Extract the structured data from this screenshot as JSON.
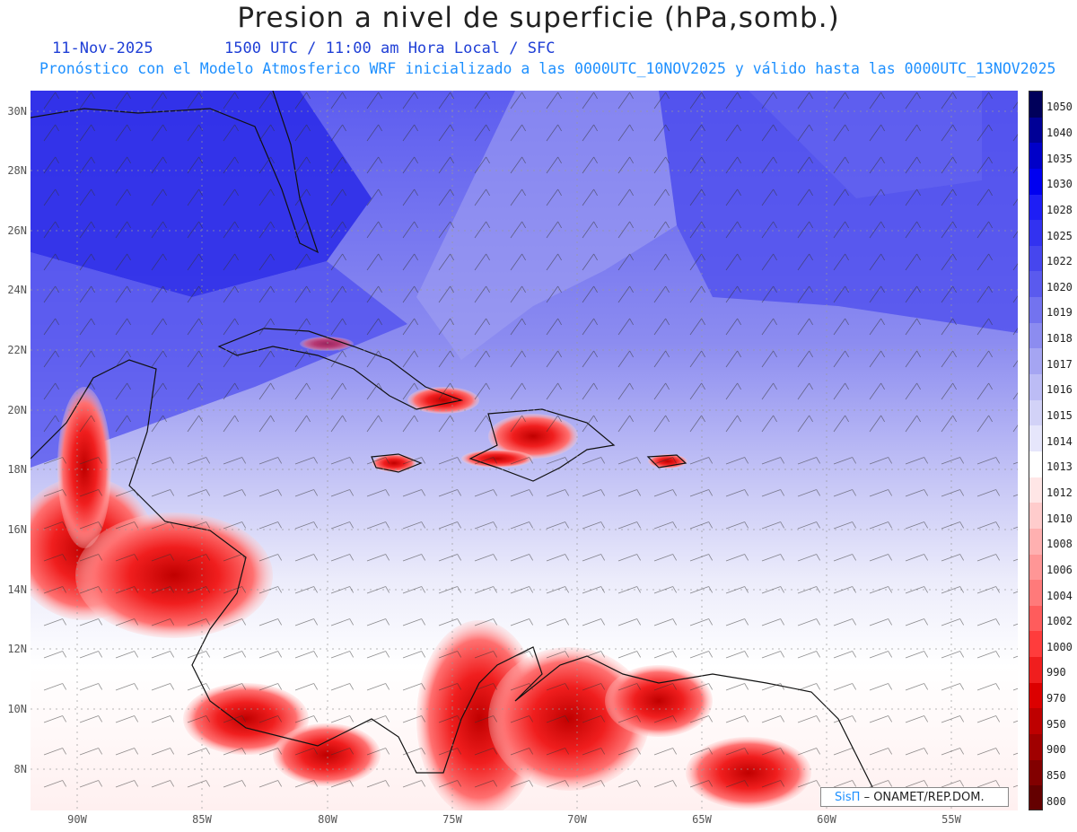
{
  "title": "Presion a nivel de superficie (hPa,somb.)",
  "date": "11-Nov-2025",
  "time_info": "1500 UTC / 11:00 am Hora Local / SFC",
  "forecast_info": "Pronóstico con el Modelo Atmosferico WRF inicializado a las 0000UTC_10NOV2025 y válido hasta las  0000UTC_13NOV2025",
  "lat_labels": [
    "30N",
    "28N",
    "26N",
    "24N",
    "22N",
    "20N",
    "18N",
    "16N",
    "14N",
    "12N",
    "10N",
    "8N"
  ],
  "lon_labels": [
    "90W",
    "85W",
    "80W",
    "75W",
    "70W",
    "65W",
    "60W",
    "55W"
  ],
  "colorbar": {
    "labels": [
      "1050",
      "1040",
      "1035",
      "1030",
      "1028",
      "1025",
      "1022",
      "1020",
      "1019",
      "1018",
      "1017",
      "1016",
      "1015",
      "1014",
      "1013",
      "1012",
      "1010",
      "1008",
      "1006",
      "1004",
      "1002",
      "1000",
      "990",
      "970",
      "950",
      "900",
      "850",
      "800"
    ],
    "colors": [
      "#00005a",
      "#000096",
      "#0000c8",
      "#0000f0",
      "#1e1ef5",
      "#3232f0",
      "#4646ee",
      "#5a5aee",
      "#7373ef",
      "#8c8cf0",
      "#a5a5f2",
      "#bcbcf5",
      "#d2d2f7",
      "#e6e6fb",
      "#ffffff",
      "#ffe6e6",
      "#ffcccc",
      "#ffb0b0",
      "#ff9696",
      "#ff7a7a",
      "#ff5c5c",
      "#ff3c3c",
      "#f01e1e",
      "#dc0000",
      "#be0000",
      "#a00000",
      "#820000",
      "#640000"
    ]
  },
  "credit": {
    "brand": "SisΠ",
    "text": "– ONAMET/REP.DOM."
  }
}
